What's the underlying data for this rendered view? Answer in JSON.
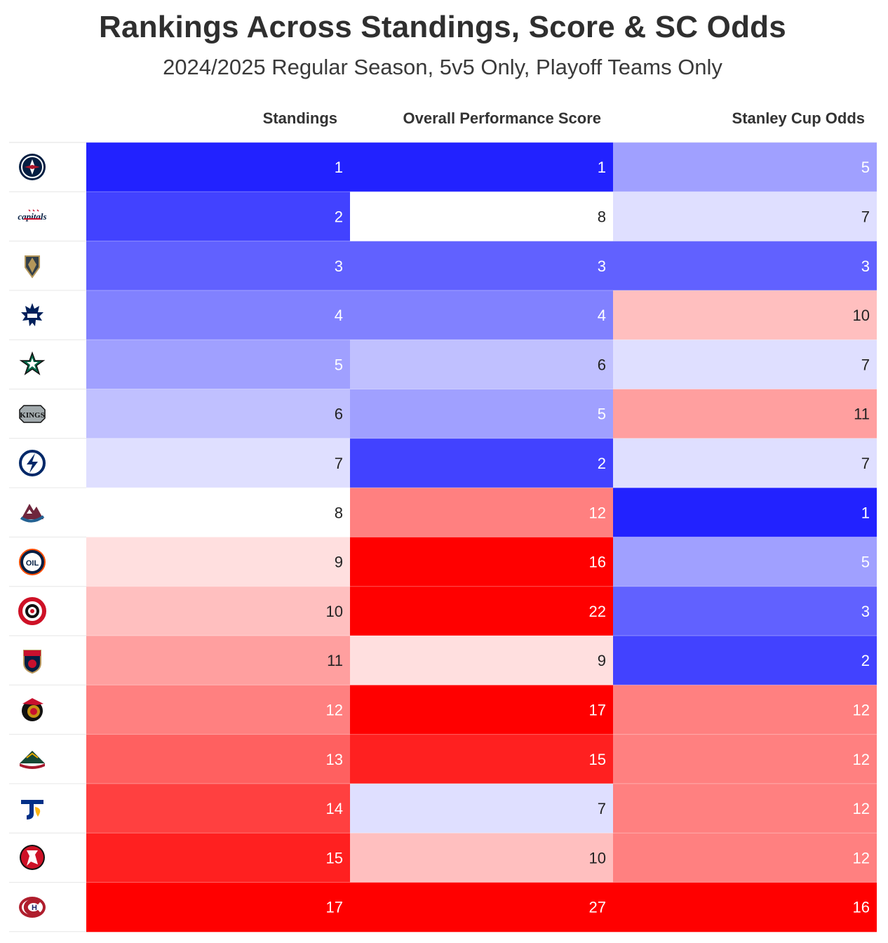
{
  "title": "Rankings Across Standings, Score & SC Odds",
  "subtitle": "2024/2025 Regular Season, 5v5 Only, Playoff Teams Only",
  "chart_data": {
    "type": "heatmap",
    "columns": [
      "Standings",
      "Overall Performance Score",
      "Stanley Cup Odds"
    ],
    "teams": [
      {
        "team": "winnipeg-jets",
        "icon": "jets-logo-icon",
        "values": [
          1,
          1,
          5
        ]
      },
      {
        "team": "washington-capitals",
        "icon": "capitals-logo-icon",
        "values": [
          2,
          8,
          7
        ]
      },
      {
        "team": "vegas-golden-knights",
        "icon": "golden-knights-logo-icon",
        "values": [
          3,
          3,
          3
        ]
      },
      {
        "team": "toronto-maple-leafs",
        "icon": "maple-leafs-logo-icon",
        "values": [
          4,
          4,
          10
        ]
      },
      {
        "team": "dallas-stars",
        "icon": "stars-logo-icon",
        "values": [
          5,
          6,
          7
        ]
      },
      {
        "team": "los-angeles-kings",
        "icon": "kings-logo-icon",
        "values": [
          6,
          5,
          11
        ]
      },
      {
        "team": "tampa-bay-lightning",
        "icon": "lightning-logo-icon",
        "values": [
          7,
          2,
          7
        ]
      },
      {
        "team": "colorado-avalanche",
        "icon": "avalanche-logo-icon",
        "values": [
          8,
          12,
          1
        ]
      },
      {
        "team": "edmonton-oilers",
        "icon": "oilers-logo-icon",
        "values": [
          9,
          16,
          5
        ]
      },
      {
        "team": "carolina-hurricanes",
        "icon": "hurricanes-logo-icon",
        "values": [
          10,
          22,
          3
        ]
      },
      {
        "team": "florida-panthers",
        "icon": "panthers-logo-icon",
        "values": [
          11,
          9,
          2
        ]
      },
      {
        "team": "ottawa-senators",
        "icon": "senators-logo-icon",
        "values": [
          12,
          17,
          12
        ]
      },
      {
        "team": "minnesota-wild",
        "icon": "wild-logo-icon",
        "values": [
          13,
          15,
          12
        ]
      },
      {
        "team": "st-louis-blues",
        "icon": "blues-logo-icon",
        "values": [
          14,
          7,
          12
        ]
      },
      {
        "team": "new-jersey-devils",
        "icon": "devils-logo-icon",
        "values": [
          15,
          10,
          12
        ]
      },
      {
        "team": "montreal-canadiens",
        "icon": "canadiens-logo-icon",
        "values": [
          17,
          27,
          16
        ]
      }
    ],
    "color_scale": {
      "low": "#2222ff",
      "mid": "#ffffff",
      "high": "#ff0000",
      "mid_value": 8,
      "high_value": 16
    }
  }
}
